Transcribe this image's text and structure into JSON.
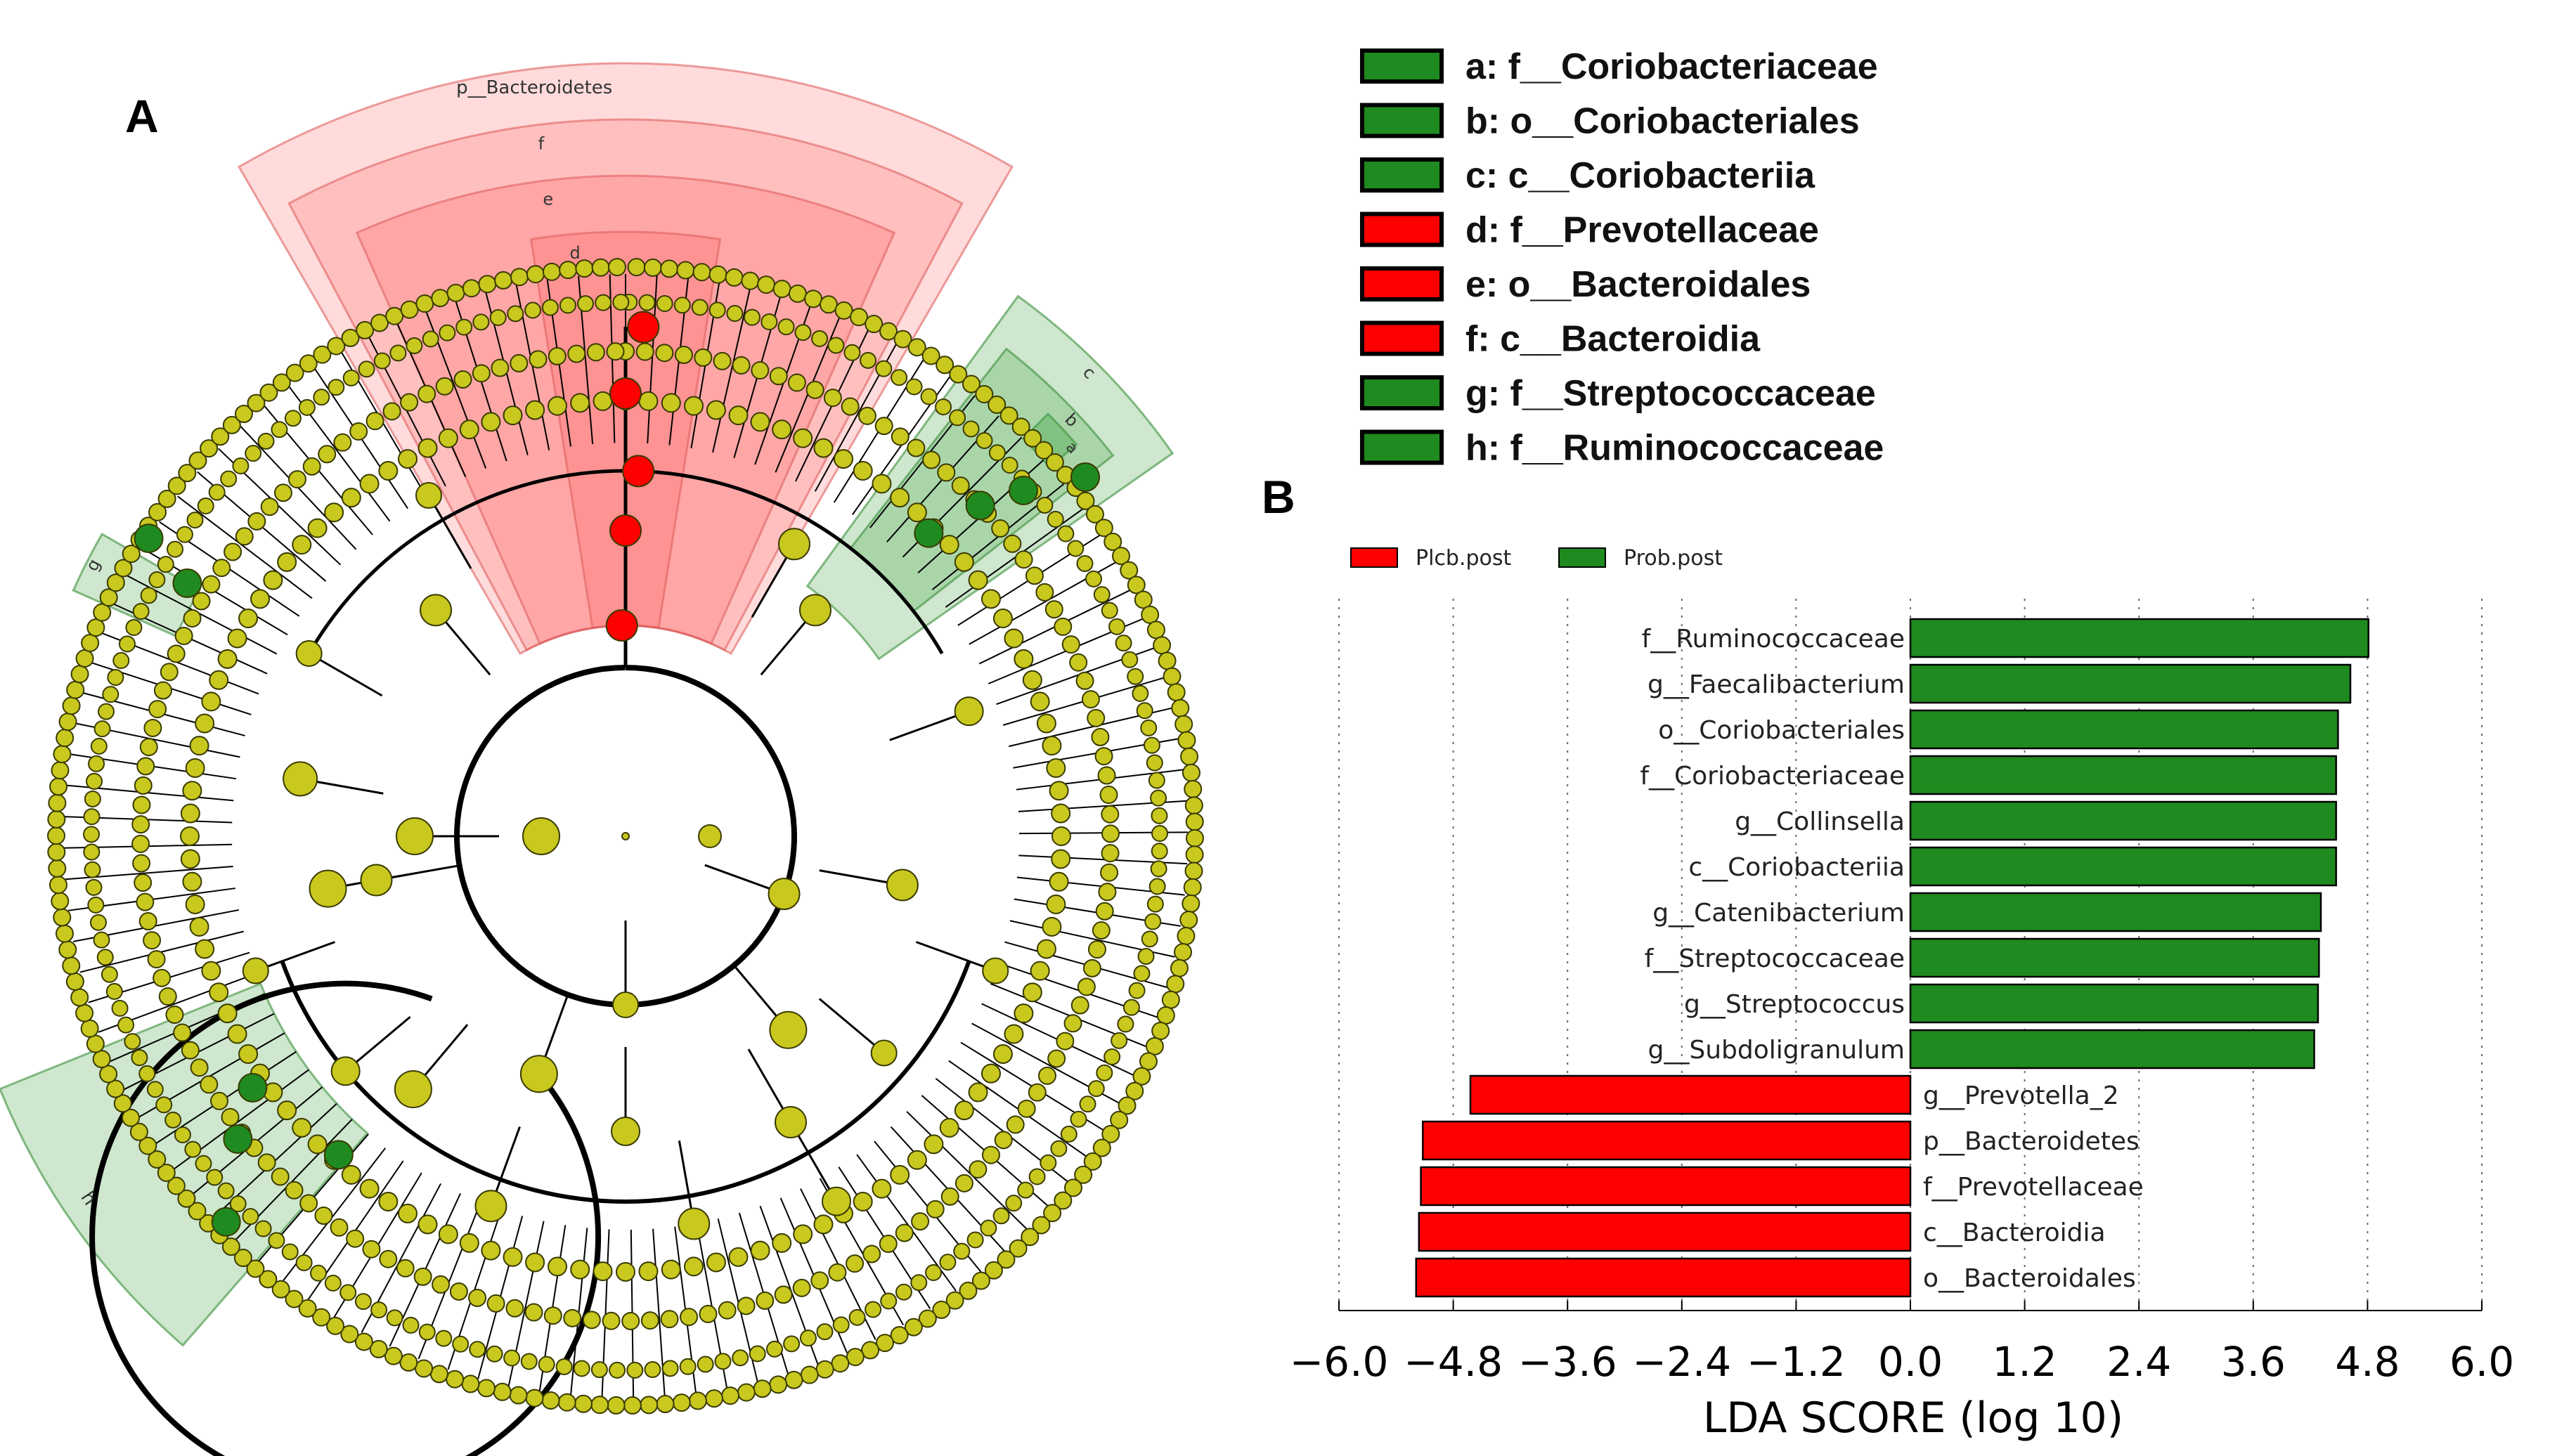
{
  "panels": {
    "a_label": "A",
    "b_label": "B"
  },
  "colors": {
    "red": "#ff0000",
    "green": "#1f8a1f",
    "node_yellow": "#c8c81e",
    "node_stroke": "#3a3a00",
    "clade_red_fill": "#ff5a5a",
    "clade_green_fill": "#3aa03a"
  },
  "cladogram": {
    "clade_labels": {
      "p_bacteroidetes": "p__Bacteroidetes",
      "f": "f",
      "e": "e",
      "d": "d",
      "c": "c",
      "b": "b",
      "a": "a",
      "g": "g",
      "h": "h"
    }
  },
  "legend_keys": [
    {
      "text": "a: f__Coriobacteriaceae",
      "color": "#1f8a1f"
    },
    {
      "text": "b: o__Coriobacteriales",
      "color": "#1f8a1f"
    },
    {
      "text": "c: c__Coriobacteriia",
      "color": "#1f8a1f"
    },
    {
      "text": "d: f__Prevotellaceae",
      "color": "#ff0000"
    },
    {
      "text": "e: o__Bacteroidales",
      "color": "#ff0000"
    },
    {
      "text": "f: c__Bacteroidia",
      "color": "#ff0000"
    },
    {
      "text": "g: f__Streptococcaceae",
      "color": "#1f8a1f"
    },
    {
      "text": "h: f__Ruminococcaceae",
      "color": "#1f8a1f"
    }
  ],
  "chart_data": {
    "type": "bar",
    "orientation": "horizontal",
    "title": "",
    "xlabel": "LDA SCORE (log 10)",
    "ylabel": "",
    "xlim": [
      -6.0,
      6.0
    ],
    "xticks": [
      -6.0,
      -4.8,
      -3.6,
      -2.4,
      -1.2,
      0.0,
      1.2,
      2.4,
      3.6,
      4.8,
      6.0
    ],
    "xtick_labels": [
      "−6.0",
      "−4.8",
      "−3.6",
      "−2.4",
      "−1.2",
      "0.0",
      "1.2",
      "2.4",
      "3.6",
      "4.8",
      "6.0"
    ],
    "grid": "vertical dotted",
    "legend": [
      {
        "name": "Plcb.post",
        "color": "#ff0000"
      },
      {
        "name": "Prob.post",
        "color": "#1f8a1f"
      }
    ],
    "categories": [
      "f__Ruminococcaceae",
      "g__Faecalibacterium",
      "o__Coriobacteriales",
      "f__Coriobacteriaceae",
      "g__Collinsella",
      "c__Coriobacteriia",
      "g__Catenibacterium",
      "f__Streptococcaceae",
      "g__Streptococcus",
      "g__Subdoligranulum",
      "g__Prevotella_2",
      "p__Bacteroidetes",
      "f__Prevotellaceae",
      "c__Bacteroidia",
      "o__Bacteroidales"
    ],
    "values": [
      4.81,
      4.62,
      4.49,
      4.47,
      4.47,
      4.47,
      4.31,
      4.29,
      4.28,
      4.24,
      -4.62,
      -5.12,
      -5.14,
      -5.16,
      -5.19
    ],
    "groups": [
      "Prob.post",
      "Prob.post",
      "Prob.post",
      "Prob.post",
      "Prob.post",
      "Prob.post",
      "Prob.post",
      "Prob.post",
      "Prob.post",
      "Prob.post",
      "Plcb.post",
      "Plcb.post",
      "Plcb.post",
      "Plcb.post",
      "Plcb.post"
    ]
  }
}
